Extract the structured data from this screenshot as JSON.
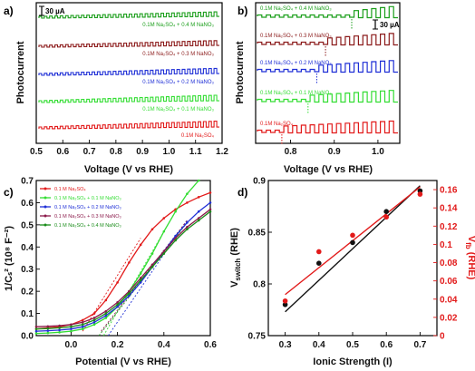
{
  "chart_data": [
    {
      "panel": "a)",
      "type": "line",
      "xlabel": "Voltage (V vs RHE)",
      "ylabel": "Photocurrent",
      "xlim": [
        0.5,
        1.2
      ],
      "xticks": [
        "0.5",
        "0.6",
        "0.7",
        "0.8",
        "0.9",
        "1.0",
        "1.1",
        "1.2"
      ],
      "scale_bar": "30 µA",
      "series": [
        {
          "name": "0.1M Na₂SO₄ + 0.4 M NaNO₃",
          "color": "#1a9e1a"
        },
        {
          "name": "0.1M Na₂SO₄ + 0.3 M NaNO₃",
          "color": "#8b1a1a"
        },
        {
          "name": "0.1M Na₂SO₄ + 0.2 M NaNO₃",
          "color": "#1f2fd6"
        },
        {
          "name": "0.1M Na₂SO₄ + 0.1 M NaNO₃",
          "color": "#33dd33"
        },
        {
          "name": "0.1M Na₂SO₄",
          "color": "#e21a1a"
        }
      ]
    },
    {
      "panel": "b)",
      "type": "line",
      "xlabel": "Voltage (V vs RHE)",
      "ylabel": "Photocurrent",
      "xlim": [
        0.72,
        1.05
      ],
      "xticks": [
        "0.8",
        "0.9",
        "1.0"
      ],
      "scale_bar": "30 µA",
      "series": [
        {
          "name": "0.1M Na₂SO₄ + 0.4 M NaNO₃",
          "color": "#1a9e1a",
          "onset": 0.94
        },
        {
          "name": "0.1M Na₂SO₄ + 0.3 M NaNO₃",
          "color": "#8b1a1a",
          "onset": 0.88
        },
        {
          "name": "0.1M Na₂SO₄ + 0.2 M NaNO₃",
          "color": "#1f2fd6",
          "onset": 0.86
        },
        {
          "name": "0.1M Na₂SO₄ + 0.1 M NaNO₃",
          "color": "#33dd33",
          "onset": 0.84
        },
        {
          "name": "0.1M Na₂SO₄",
          "color": "#e21a1a",
          "onset": 0.78
        }
      ]
    },
    {
      "panel": "c)",
      "type": "line",
      "xlabel": "Potential (V vs RHE)",
      "ylabel": "1/Cₛ² (10⁸ F⁻²)",
      "xlim": [
        -0.15,
        0.6
      ],
      "ylim": [
        0.0,
        0.7
      ],
      "xticks": [
        0.0,
        0.2,
        0.4,
        0.6
      ],
      "yticks": [
        0.0,
        0.1,
        0.2,
        0.3,
        0.4,
        0.5,
        0.6,
        0.7
      ],
      "legend_position": "top-left",
      "series": [
        {
          "name": "0.1 M Na₂SO₄",
          "color": "#e21a1a",
          "x": [
            -0.15,
            -0.1,
            -0.05,
            0.0,
            0.05,
            0.1,
            0.15,
            0.2,
            0.25,
            0.3,
            0.35,
            0.4,
            0.45,
            0.5,
            0.55,
            0.6
          ],
          "y": [
            0.03,
            0.035,
            0.04,
            0.05,
            0.07,
            0.1,
            0.16,
            0.24,
            0.33,
            0.41,
            0.48,
            0.53,
            0.57,
            0.6,
            0.625,
            0.645
          ],
          "fit_x": [
            0.05,
            0.3
          ],
          "fit_y": [
            0.02,
            0.44
          ]
        },
        {
          "name": "0.1 M Na₂SO₄ + 0.1 M NaNO₃",
          "color": "#33dd33",
          "x": [
            -0.15,
            -0.1,
            -0.05,
            0.0,
            0.05,
            0.1,
            0.15,
            0.2,
            0.25,
            0.3,
            0.35,
            0.4,
            0.45,
            0.5,
            0.55
          ],
          "y": [
            0.01,
            0.012,
            0.015,
            0.02,
            0.03,
            0.05,
            0.08,
            0.13,
            0.2,
            0.28,
            0.37,
            0.47,
            0.56,
            0.64,
            0.7
          ],
          "fit_x": [
            0.14,
            0.45
          ],
          "fit_y": [
            0.0,
            0.56
          ]
        },
        {
          "name": "0.1 M Na₂SO₄ + 0.2 M NaNO₃",
          "color": "#1f2fd6",
          "x": [
            -0.15,
            -0.1,
            -0.05,
            0.0,
            0.05,
            0.1,
            0.15,
            0.2,
            0.25,
            0.3,
            0.35,
            0.4,
            0.45,
            0.5,
            0.55,
            0.6
          ],
          "y": [
            0.02,
            0.022,
            0.025,
            0.03,
            0.04,
            0.06,
            0.09,
            0.13,
            0.18,
            0.24,
            0.31,
            0.38,
            0.45,
            0.51,
            0.56,
            0.6
          ],
          "fit_x": [
            0.16,
            0.5
          ],
          "fit_y": [
            0.0,
            0.52
          ]
        },
        {
          "name": "0.1 M Na₂SO₄ + 0.3 M NaNO₃",
          "color": "#8b1a4a",
          "x": [
            -0.15,
            -0.1,
            -0.05,
            0.0,
            0.05,
            0.1,
            0.15,
            0.2,
            0.25,
            0.3,
            0.35,
            0.4,
            0.45,
            0.5,
            0.55,
            0.6
          ],
          "y": [
            0.04,
            0.042,
            0.045,
            0.05,
            0.06,
            0.08,
            0.11,
            0.15,
            0.2,
            0.26,
            0.32,
            0.38,
            0.44,
            0.49,
            0.53,
            0.57
          ],
          "fit_x": [
            0.13,
            0.5
          ],
          "fit_y": [
            0.02,
            0.52
          ]
        },
        {
          "name": "0.1 M Na₂SO₄ + 0.4 M NaNO₃",
          "color": "#1a8c1a",
          "x": [
            -0.15,
            -0.1,
            -0.05,
            0.0,
            0.05,
            0.1,
            0.15,
            0.2,
            0.25,
            0.3,
            0.35,
            0.4,
            0.45,
            0.5,
            0.55,
            0.6
          ],
          "y": [
            0.03,
            0.032,
            0.035,
            0.04,
            0.05,
            0.07,
            0.1,
            0.14,
            0.19,
            0.25,
            0.31,
            0.37,
            0.43,
            0.48,
            0.52,
            0.56
          ],
          "fit_x": [
            0.12,
            0.5
          ],
          "fit_y": [
            0.0,
            0.51
          ]
        }
      ]
    },
    {
      "panel": "d)",
      "type": "scatter",
      "xlabel": "Ionic Strength (I)",
      "ylabel_left": "Vₛᵥᵢₜᶜʰ (RHE)",
      "ylabel_left_main": "V",
      "ylabel_left_sub": "switch",
      "ylabel_left_tail": " (RHE)",
      "ylabel_right_main": "V",
      "ylabel_right_sub": "fb",
      "ylabel_right_tail": " (RHE)",
      "xlim": [
        0.25,
        0.75
      ],
      "ylim_left": [
        0.75,
        0.9
      ],
      "ylim_right": [
        0.0,
        0.17
      ],
      "xticks": [
        0.3,
        0.4,
        0.5,
        0.6,
        0.7
      ],
      "yticks_left": [
        "0.75",
        "0.8",
        "0.85",
        "0.9"
      ],
      "yticks_right": [
        "0",
        "0.02",
        "0.04",
        "0.06",
        "0.08",
        "0.1",
        "0.12",
        "0.14",
        "0.16"
      ],
      "series": [
        {
          "name": "Vswitch",
          "axis": "left",
          "color": "#111111",
          "x": [
            0.3,
            0.4,
            0.5,
            0.6,
            0.7
          ],
          "y": [
            0.78,
            0.82,
            0.84,
            0.87,
            0.89
          ],
          "fit_x": [
            0.3,
            0.7
          ],
          "fit_y": [
            0.773,
            0.895
          ]
        },
        {
          "name": "Vfb",
          "axis": "right",
          "color": "#e21a1a",
          "x": [
            0.3,
            0.4,
            0.5,
            0.6,
            0.7
          ],
          "y": [
            0.038,
            0.092,
            0.11,
            0.13,
            0.155
          ],
          "fit_x": [
            0.3,
            0.7
          ],
          "fit_y": [
            0.045,
            0.163
          ]
        }
      ]
    }
  ]
}
